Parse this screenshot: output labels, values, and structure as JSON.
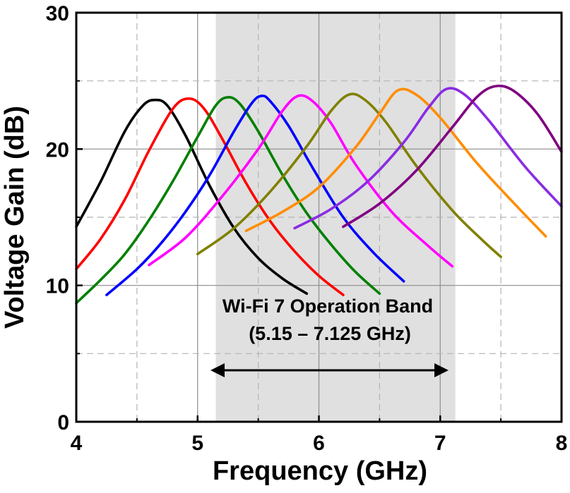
{
  "chart_data": {
    "type": "line",
    "title": "",
    "xlabel": "Frequency (GHz)",
    "ylabel": "Voltage Gain (dB)",
    "xlim": [
      4,
      8
    ],
    "ylim": [
      0,
      30
    ],
    "x_ticks": [
      "4",
      "5",
      "6",
      "7",
      "8"
    ],
    "y_ticks": [
      "0",
      "10",
      "20",
      "30"
    ],
    "grid": true,
    "shaded_band": {
      "x_start": 5.15,
      "x_end": 7.125,
      "color": "#e0e0e0"
    },
    "annotation": {
      "line1": "Wi-Fi 7 Operation Band",
      "line2": "(5.15 – 7.125 GHz)"
    },
    "series": [
      {
        "color": "#000000",
        "x": [
          4.0,
          4.2,
          4.4,
          4.55,
          4.65,
          4.75,
          4.9,
          5.1,
          5.3,
          5.5,
          5.7,
          5.9
        ],
        "y": [
          14.3,
          17.6,
          21.3,
          23.2,
          23.6,
          23.2,
          21.0,
          17.3,
          14.2,
          12.0,
          10.5,
          9.4
        ]
      },
      {
        "color": "#ff0000",
        "x": [
          4.0,
          4.2,
          4.4,
          4.6,
          4.8,
          4.93,
          5.05,
          5.2,
          5.4,
          5.6,
          5.8,
          6.0,
          6.2
        ],
        "y": [
          11.2,
          13.4,
          16.3,
          19.9,
          23.0,
          23.7,
          23.0,
          20.8,
          17.5,
          14.7,
          12.5,
          10.7,
          9.3
        ]
      },
      {
        "color": "#008000",
        "x": [
          4.0,
          4.2,
          4.4,
          4.6,
          4.8,
          5.0,
          5.15,
          5.25,
          5.35,
          5.5,
          5.7,
          5.9,
          6.1,
          6.3,
          6.5
        ],
        "y": [
          8.7,
          10.4,
          12.3,
          14.8,
          17.7,
          20.9,
          23.2,
          23.8,
          23.3,
          21.3,
          18.1,
          15.3,
          13.0,
          11.0,
          9.4
        ]
      },
      {
        "color": "#0000ff",
        "x": [
          4.25,
          4.5,
          4.7,
          4.9,
          5.1,
          5.3,
          5.45,
          5.53,
          5.6,
          5.75,
          5.95,
          6.2,
          6.45,
          6.7
        ],
        "y": [
          9.3,
          11.2,
          13.1,
          15.4,
          18.1,
          21.3,
          23.4,
          23.9,
          23.5,
          21.7,
          18.6,
          15.0,
          12.4,
          10.3
        ]
      },
      {
        "color": "#ff00ff",
        "x": [
          4.6,
          4.9,
          5.2,
          5.5,
          5.7,
          5.83,
          5.95,
          6.1,
          6.3,
          6.6,
          6.9,
          7.1
        ],
        "y": [
          11.5,
          13.5,
          16.5,
          20.0,
          22.8,
          23.9,
          23.5,
          21.9,
          18.9,
          15.4,
          12.9,
          11.4
        ]
      },
      {
        "color": "#808000",
        "x": [
          5.0,
          5.3,
          5.6,
          5.9,
          6.1,
          6.25,
          6.38,
          6.55,
          6.8,
          7.1,
          7.35,
          7.5
        ],
        "y": [
          12.3,
          14.2,
          16.9,
          20.2,
          22.8,
          24.0,
          23.6,
          22.0,
          18.8,
          15.5,
          13.3,
          12.1
        ]
      },
      {
        "color": "#ff8c00",
        "x": [
          5.4,
          5.7,
          6.0,
          6.3,
          6.5,
          6.65,
          6.8,
          7.0,
          7.3,
          7.6,
          7.87
        ],
        "y": [
          14.0,
          15.4,
          17.2,
          20.1,
          22.6,
          24.3,
          24.0,
          22.3,
          19.0,
          16.1,
          13.6
        ]
      },
      {
        "color": "#8a2be2",
        "x": [
          5.8,
          6.1,
          6.4,
          6.7,
          6.9,
          7.05,
          7.2,
          7.4,
          7.7,
          8.0
        ],
        "y": [
          14.2,
          15.6,
          17.6,
          20.5,
          23.0,
          24.4,
          24.0,
          22.1,
          18.7,
          15.8
        ]
      },
      {
        "color": "#800080",
        "x": [
          6.2,
          6.5,
          6.8,
          7.1,
          7.3,
          7.45,
          7.6,
          7.8,
          8.0
        ],
        "y": [
          14.3,
          16.0,
          18.4,
          21.6,
          23.8,
          24.6,
          24.3,
          22.6,
          19.8
        ]
      }
    ]
  }
}
